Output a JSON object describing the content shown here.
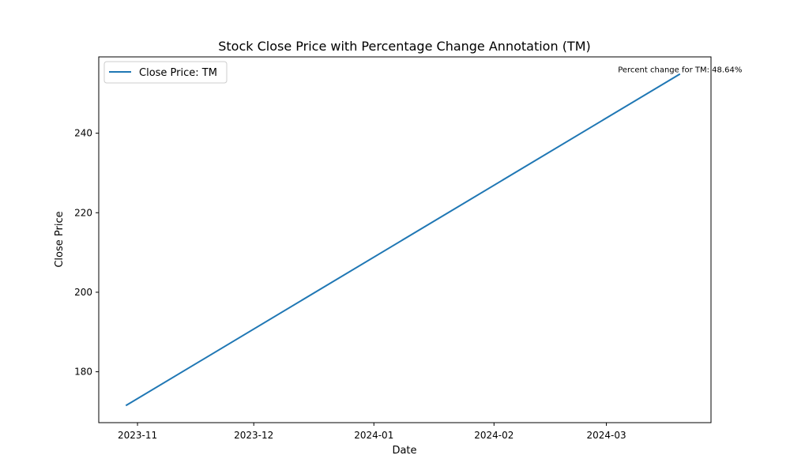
{
  "chart_data": {
    "type": "line",
    "title": "Stock Close Price with Percentage Change Annotation (TM)",
    "xlabel": "Date",
    "ylabel": "Close Price",
    "x_range": [
      "2023-10-22",
      "2024-03-28"
    ],
    "ylim": [
      167.2,
      259.2
    ],
    "x_ticks": [
      {
        "date": "2023-11-01",
        "label": "2023-11"
      },
      {
        "date": "2023-12-01",
        "label": "2023-12"
      },
      {
        "date": "2024-01-01",
        "label": "2024-01"
      },
      {
        "date": "2024-02-01",
        "label": "2024-02"
      },
      {
        "date": "2024-03-01",
        "label": "2024-03"
      }
    ],
    "y_ticks": [
      180,
      200,
      220,
      240
    ],
    "grid": false,
    "legend_position": "top-left",
    "series": [
      {
        "name": "Close Price: TM",
        "color": "#1f77b4",
        "points": [
          {
            "x": "2023-10-29",
            "y": 171.5
          },
          {
            "x": "2024-03-20",
            "y": 254.9
          }
        ]
      }
    ],
    "annotation": {
      "text": "Percent change for TM: 48.64%",
      "x": "2024-03-20",
      "y": 254.9
    }
  }
}
